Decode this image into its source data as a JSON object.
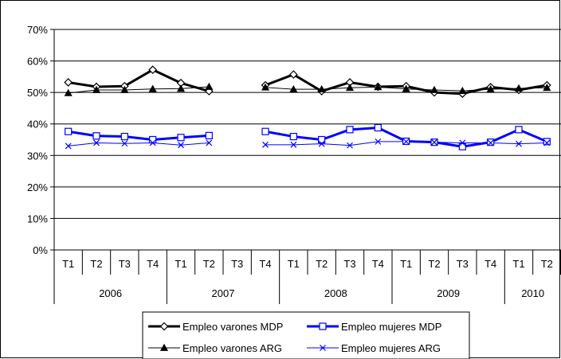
{
  "chart_data": {
    "type": "line",
    "ylim": [
      0,
      70
    ],
    "y_ticks": [
      "0%",
      "10%",
      "20%",
      "30%",
      "40%",
      "50%",
      "60%",
      "70%"
    ],
    "grid": "horizontal",
    "legend_position": "bottom",
    "quarters": [
      "T1",
      "T2",
      "T3",
      "T4",
      "T1",
      "T2",
      "T3",
      "T4",
      "T1",
      "T2",
      "T3",
      "T4",
      "T1",
      "T2",
      "T3",
      "T4",
      "T1",
      "T2"
    ],
    "years": [
      {
        "label": "2006",
        "start": 0,
        "count": 4
      },
      {
        "label": "2007",
        "start": 4,
        "count": 4
      },
      {
        "label": "2008",
        "start": 8,
        "count": 4
      },
      {
        "label": "2009",
        "start": 12,
        "count": 4
      },
      {
        "label": "2010",
        "start": 16,
        "count": 2
      }
    ],
    "series": [
      {
        "name": "Empleo varones MDP",
        "color": "#000000",
        "marker": "diamond",
        "width": 3,
        "values": [
          53.2,
          51.8,
          52.0,
          57.2,
          53.0,
          50.4,
          null,
          52.3,
          55.7,
          50.4,
          53.2,
          51.8,
          52.0,
          50.0,
          49.6,
          51.7,
          50.8,
          52.3
        ]
      },
      {
        "name": "Empleo mujeres MDP",
        "color": "#0000ff",
        "marker": "square",
        "width": 3,
        "values": [
          37.6,
          36.2,
          36.0,
          35.0,
          35.7,
          36.3,
          null,
          37.6,
          36.0,
          35.0,
          38.2,
          38.8,
          34.5,
          34.2,
          32.8,
          34.2,
          38.2,
          34.4
        ]
      },
      {
        "name": "Empleo varones ARG",
        "color": "#000000",
        "marker": "triangle",
        "width": 1,
        "values": [
          49.8,
          50.8,
          50.8,
          51.1,
          51.2,
          51.8,
          null,
          51.6,
          51.0,
          51.0,
          51.5,
          51.7,
          51.1,
          50.8,
          50.5,
          51.0,
          51.3,
          51.5
        ]
      },
      {
        "name": "Empleo mujeres ARG",
        "color": "#0000ff",
        "marker": "x",
        "width": 1,
        "values": [
          33.0,
          34.0,
          33.8,
          34.0,
          33.3,
          34.0,
          null,
          33.4,
          33.4,
          33.7,
          33.2,
          34.4,
          34.4,
          34.2,
          34.0,
          34.0,
          33.7,
          34.0
        ]
      }
    ]
  }
}
